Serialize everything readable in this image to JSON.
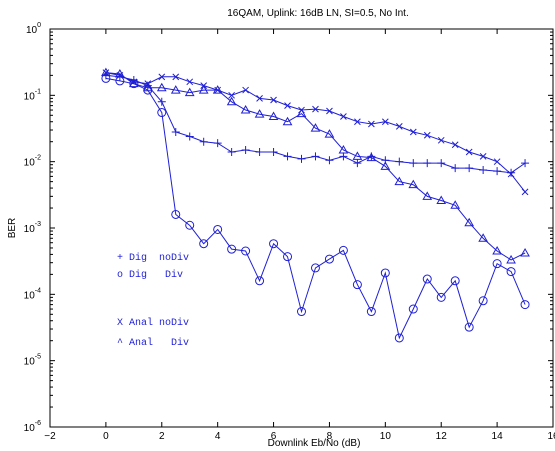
{
  "chart_data": {
    "type": "line",
    "title": "16QAM, Uplink: 16dB LN, SI=0.5, No Int.",
    "xlabel": "Downlink Eb/No (dB)",
    "ylabel": "BER",
    "xlim": [
      -2,
      16
    ],
    "ylim": [
      1e-06,
      1
    ],
    "yscale": "log",
    "x_ticks": [
      -2,
      0,
      2,
      4,
      6,
      8,
      10,
      12,
      14,
      16
    ],
    "x_tick_labels": [
      "−2",
      "0",
      "2",
      "4",
      "6",
      "8",
      "10",
      "12",
      "14",
      "16"
    ],
    "y_ticks": [
      0,
      -1,
      -2,
      -3,
      -4,
      -5,
      -6
    ],
    "y_tick_labels": [
      {
        "base": "10",
        "exp": "0"
      },
      {
        "base": "10",
        "exp": "-1"
      },
      {
        "base": "10",
        "exp": "-2"
      },
      {
        "base": "10",
        "exp": "-3"
      },
      {
        "base": "10",
        "exp": "-4"
      },
      {
        "base": "10",
        "exp": "-5"
      },
      {
        "base": "10",
        "exp": "-6"
      }
    ],
    "grid": false,
    "line_color": "#1f1fd6",
    "x": [
      0,
      0.5,
      1,
      1.5,
      2,
      2.5,
      3,
      3.5,
      4,
      4.5,
      5,
      5.5,
      6,
      6.5,
      7,
      7.5,
      8,
      8.5,
      9,
      9.5,
      10,
      10.5,
      11,
      11.5,
      12,
      12.5,
      13,
      13.5,
      14,
      14.5,
      15
    ],
    "series": [
      {
        "name": "Dig noDiv",
        "marker": "plus",
        "values": [
          0.2,
          0.19,
          0.17,
          0.14,
          0.08,
          0.028,
          0.024,
          0.02,
          0.019,
          0.014,
          0.015,
          0.014,
          0.014,
          0.012,
          0.011,
          0.012,
          0.0105,
          0.012,
          0.0095,
          0.012,
          0.0105,
          0.01,
          0.0095,
          0.0095,
          0.0095,
          0.008,
          0.008,
          0.0075,
          0.0072,
          0.0068,
          0.0095
        ]
      },
      {
        "name": "Dig Div",
        "marker": "circle",
        "values": [
          0.18,
          0.165,
          0.15,
          0.12,
          0.055,
          0.0016,
          0.0011,
          0.00058,
          0.00095,
          0.00048,
          0.00045,
          0.00016,
          0.00058,
          0.00037,
          5.5e-05,
          0.00025,
          0.00034,
          0.00046,
          0.00014,
          5.5e-05,
          0.00021,
          2.2e-05,
          6e-05,
          0.00017,
          9e-05,
          0.00016,
          3.2e-05,
          8e-05,
          0.00029,
          0.00022,
          7e-05
        ]
      },
      {
        "name": "Anal noDiv",
        "marker": "x",
        "values": [
          0.22,
          0.2,
          0.16,
          0.15,
          0.19,
          0.19,
          0.16,
          0.14,
          0.12,
          0.1,
          0.12,
          0.09,
          0.085,
          0.07,
          0.06,
          0.062,
          0.058,
          0.048,
          0.04,
          0.037,
          0.04,
          0.034,
          0.028,
          0.025,
          0.021,
          0.018,
          0.014,
          0.012,
          0.01,
          0.0065,
          0.0035
        ]
      },
      {
        "name": "Anal Div",
        "marker": "triangle",
        "values": [
          0.22,
          0.21,
          0.15,
          0.13,
          0.13,
          0.12,
          0.11,
          0.12,
          0.12,
          0.08,
          0.06,
          0.052,
          0.048,
          0.04,
          0.053,
          0.032,
          0.026,
          0.015,
          0.012,
          0.0115,
          0.0085,
          0.005,
          0.0045,
          0.003,
          0.0026,
          0.0022,
          0.0012,
          0.0007,
          0.00045,
          0.00033,
          0.00042
        ]
      }
    ],
    "legend": {
      "placement": "center-left",
      "entries": [
        {
          "symbol": "+",
          "text": "Dig  noDiv"
        },
        {
          "symbol": "o",
          "text": "Dig   Div"
        },
        {
          "symbol": "X",
          "text": "Anal noDiv"
        },
        {
          "symbol": "^",
          "text": "Anal   Div"
        }
      ]
    }
  }
}
